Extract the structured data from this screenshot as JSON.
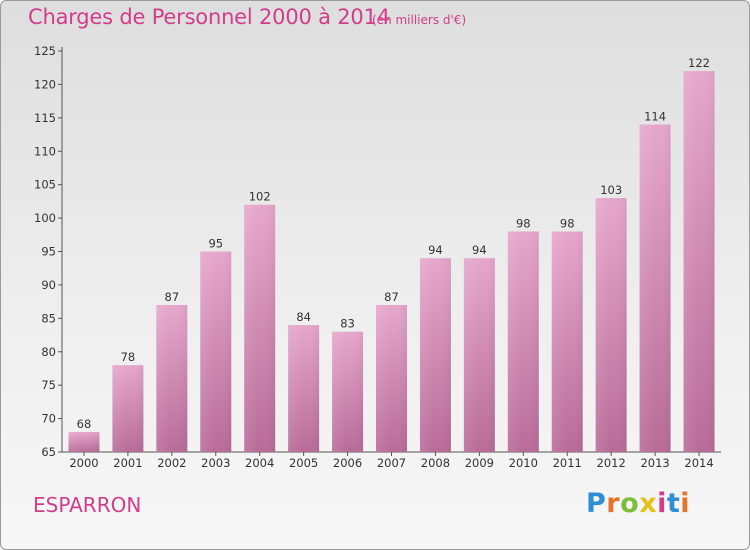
{
  "header": {
    "title": "Charges de Personnel 2000 à 2014",
    "subtitle": "(en milliers d'€)"
  },
  "footer": {
    "commune": "ESPARRON",
    "logo_text": "Proxiti",
    "logo_colors": [
      "#2d8fd6",
      "#e7742a",
      "#7bbf3a",
      "#e5c21a",
      "#d23c8a",
      "#2d8fd6",
      "#e7742a"
    ]
  },
  "colors": {
    "title": "#d23c8a",
    "bar_top": "#e6a7cc",
    "bar_bottom": "#b86c98",
    "axis": "#555555"
  },
  "chart_data": {
    "type": "bar",
    "categories": [
      "2000",
      "2001",
      "2002",
      "2003",
      "2004",
      "2005",
      "2006",
      "2007",
      "2008",
      "2009",
      "2010",
      "2011",
      "2012",
      "2013",
      "2014"
    ],
    "values": [
      68,
      78,
      87,
      95,
      102,
      84,
      83,
      87,
      94,
      94,
      98,
      98,
      103,
      114,
      122
    ],
    "ylim": [
      65,
      125
    ],
    "yticks": [
      65,
      70,
      75,
      80,
      85,
      90,
      95,
      100,
      105,
      110,
      115,
      120,
      125
    ],
    "grid": false,
    "legend": "none"
  }
}
